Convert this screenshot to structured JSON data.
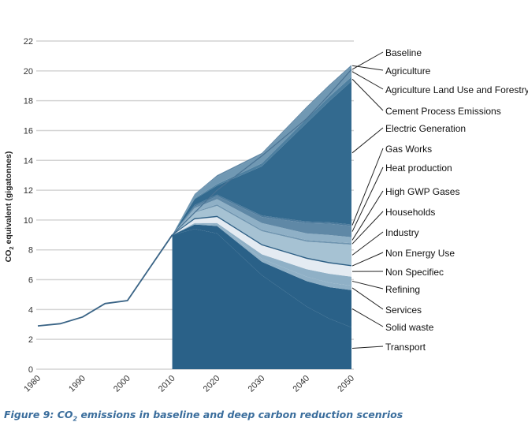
{
  "chart_data": {
    "type": "area",
    "title": "",
    "xlabel": "",
    "ylabel": "CO2 equivalent (gigatonnes)",
    "ylabel_parts": {
      "pre": "CO",
      "sub": "2",
      "post": " equivalent (gigatonnes)"
    },
    "ylim": [
      0,
      22
    ],
    "xlim": [
      1980,
      2050
    ],
    "yticks": [
      0,
      2,
      4,
      6,
      8,
      10,
      12,
      14,
      16,
      18,
      20,
      22
    ],
    "xticks": [
      1980,
      1990,
      2000,
      2010,
      2020,
      2030,
      2040,
      2050
    ],
    "grid": true,
    "legend_placement": "right (leader-line labels)",
    "historical": {
      "name": "Historical",
      "x": [
        1980,
        1985,
        1990,
        1995,
        2000,
        2005,
        2010
      ],
      "values": [
        2.9,
        3.05,
        3.5,
        4.4,
        4.6,
        6.8,
        9.0
      ]
    },
    "x": [
      2010,
      2015,
      2020,
      2030,
      2040,
      2045,
      2050
    ],
    "series": [
      {
        "name": "Transport",
        "values": [
          9.0,
          9.4,
          9.1,
          6.3,
          4.2,
          3.4,
          2.8
        ]
      },
      {
        "name": "Solid waste",
        "values": [
          0.0,
          0.3,
          0.5,
          0.9,
          1.7,
          2.1,
          2.5
        ]
      },
      {
        "name": "Services",
        "values": [
          0.0,
          0.05,
          0.1,
          0.2,
          0.3,
          0.3,
          0.3
        ]
      },
      {
        "name": "Refining",
        "values": [
          0.0,
          0.05,
          0.1,
          0.3,
          0.5,
          0.6,
          0.6
        ]
      },
      {
        "name": "Non Specifiec",
        "values": [
          0.0,
          0.25,
          0.4,
          0.6,
          0.7,
          0.7,
          0.7
        ]
      },
      {
        "name": "Non Energy Use",
        "values": [
          0.0,
          0.05,
          0.05,
          0.05,
          0.05,
          0.05,
          0.05
        ]
      },
      {
        "name": "Industry",
        "values": [
          0.0,
          0.4,
          0.7,
          0.9,
          1.1,
          1.3,
          1.4
        ]
      },
      {
        "name": "Households",
        "values": [
          0.0,
          0.05,
          0.1,
          0.1,
          0.1,
          0.1,
          0.1
        ]
      },
      {
        "name": "High GWP Gases",
        "values": [
          0.0,
          0.25,
          0.35,
          0.45,
          0.45,
          0.45,
          0.4
        ]
      },
      {
        "name": "Heat production",
        "values": [
          0.0,
          0.1,
          0.2,
          0.4,
          0.7,
          0.75,
          0.75
        ]
      },
      {
        "name": "Gas Works",
        "values": [
          0.0,
          0.1,
          0.1,
          0.1,
          0.1,
          0.1,
          0.1
        ]
      },
      {
        "name": "Electric Generation",
        "values": [
          0.0,
          0.4,
          0.6,
          3.3,
          6.6,
          8.1,
          9.6
        ]
      },
      {
        "name": "Cement Process Emissions",
        "values": [
          0.0,
          0.05,
          0.1,
          0.2,
          0.3,
          0.3,
          0.3
        ]
      },
      {
        "name": "Agriculture Land Use and Forestry",
        "values": [
          0.0,
          0.25,
          0.5,
          0.6,
          0.7,
          0.7,
          0.7
        ]
      },
      {
        "name": "Agriculture",
        "values": [
          0.0,
          0.05,
          0.1,
          0.1,
          0.1,
          0.1,
          0.1
        ]
      }
    ],
    "baseline": {
      "name": "Baseline",
      "values": [
        9.0,
        10.5,
        12.0,
        14.3,
        16.8,
        18.4,
        20.1
      ]
    },
    "legend_labels": [
      "Baseline",
      "Agriculture",
      "Agriculture Land Use and Forestry",
      "Cement Process Emissions",
      "Electric Generation",
      "Gas Works",
      "Heat production",
      "High GWP Gases",
      "Households",
      "Industry",
      "Non Energy Use",
      "Non Specifiec",
      "Refining",
      "Services",
      "Solid waste",
      "Transport"
    ],
    "colors": {
      "Transport": "#2a6188",
      "Solid waste": "#2a6188",
      "Services": "#8fb0c6",
      "Refining": "#8fb0c6",
      "Non Specifiec": "#e4ebf2",
      "Non Energy Use": "#2d5f85",
      "Industry": "#a6c2d3",
      "Households": "#6f95b0",
      "High GWP Gases": "#8fb0c6",
      "Heat production": "#5f88a6",
      "Gas Works": "#4c7a9c",
      "Electric Generation": "#336a8f",
      "Cement Process Emissions": "#4d7fa0",
      "Agriculture Land Use and Forestry": "#7098b3",
      "Agriculture": "#6189a7",
      "line": "#3a6486",
      "grid": "#d4d4d4"
    }
  },
  "caption": {
    "pre": "Figure 9: CO",
    "sub": "2",
    "post": " emissions in baseline and deep carbon reduction scenrios"
  }
}
